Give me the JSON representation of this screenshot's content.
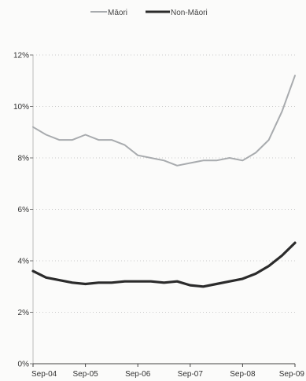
{
  "chart_data": {
    "type": "line",
    "x": [
      "Sep-04",
      "Dec-04",
      "Mar-05",
      "Jun-05",
      "Sep-05",
      "Dec-05",
      "Mar-06",
      "Jun-06",
      "Sep-06",
      "Dec-06",
      "Mar-07",
      "Jun-07",
      "Sep-07",
      "Dec-07",
      "Mar-08",
      "Jun-08",
      "Sep-08",
      "Dec-08",
      "Mar-09",
      "Jun-09",
      "Sep-09"
    ],
    "x_tick_labels": [
      "Sep-04",
      "Sep-05",
      "Sep-06",
      "Sep-07",
      "Sep-08",
      "Sep-09"
    ],
    "series": [
      {
        "name": "Māori",
        "color": "#a8abae",
        "values": [
          9.2,
          8.9,
          8.7,
          8.7,
          8.9,
          8.7,
          8.7,
          8.5,
          8.1,
          8.0,
          7.9,
          7.7,
          7.8,
          7.9,
          7.9,
          8.0,
          7.9,
          8.2,
          8.7,
          9.8,
          11.2
        ]
      },
      {
        "name": "Non-Māori",
        "color": "#2b2b2b",
        "values": [
          3.6,
          3.35,
          3.25,
          3.15,
          3.1,
          3.15,
          3.15,
          3.2,
          3.2,
          3.2,
          3.15,
          3.2,
          3.05,
          3.0,
          3.1,
          3.2,
          3.3,
          3.5,
          3.8,
          4.2,
          4.7
        ]
      }
    ],
    "y_tick_labels": [
      "0%",
      "2%",
      "4%",
      "6%",
      "8%",
      "10%",
      "12%"
    ],
    "y_ticks": [
      0,
      2,
      4,
      6,
      8,
      10,
      12
    ],
    "ylim": [
      0,
      12
    ],
    "grid": "horizontal-dotted",
    "legend_position": "top-center"
  }
}
